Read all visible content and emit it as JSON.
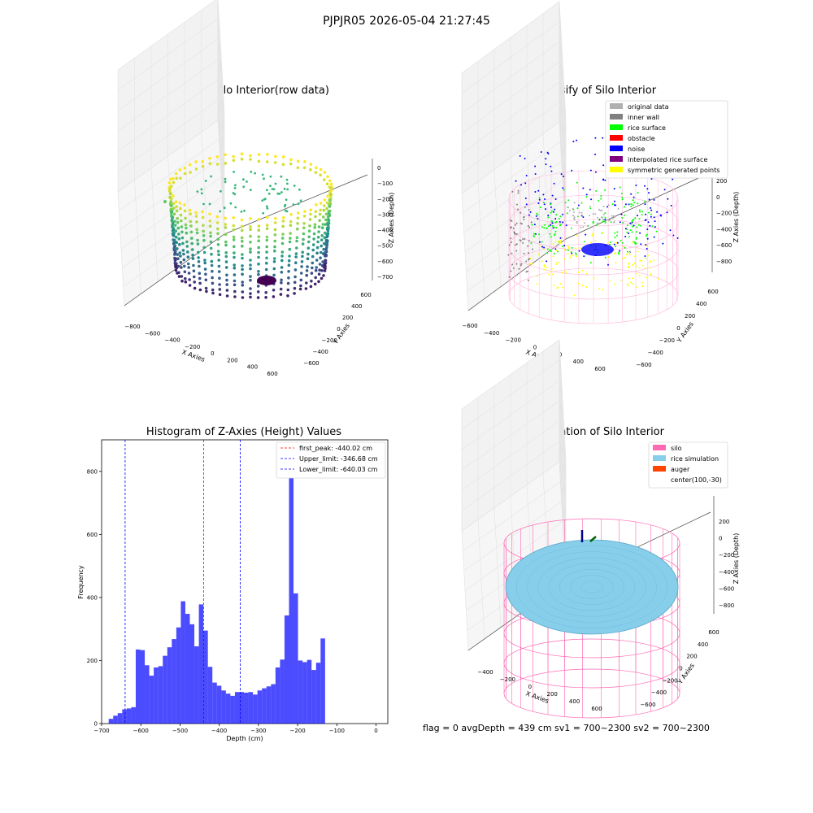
{
  "figure_title": "PJPJR05 2026-05-04 21:27:45",
  "footer_text": "flag = 0     avgDepth = 439 cm  sv1 = 700~2300  sv2 = 700~2300",
  "chart_data": [
    {
      "type": "scatter",
      "title": "3D Plot of Silo Interior(row data)",
      "xlabel": "X Axies",
      "ylabel": "Y Axies",
      "zlabel": "Z Axies (Depth)",
      "x_ticks": [
        "−800",
        "−600",
        "−400",
        "−200",
        "0",
        "200",
        "400",
        "600"
      ],
      "y_ticks": [
        "−600",
        "−400",
        "−200",
        "0",
        "200",
        "400",
        "600"
      ],
      "z_ticks": [
        "0",
        "−100",
        "−200",
        "−300",
        "−400",
        "−500",
        "−600",
        "−700"
      ],
      "colormap": "viridis",
      "colors": {
        "high": "#fde725",
        "mid": "#21918c",
        "low": "#440154"
      }
    },
    {
      "type": "scatter",
      "title": "3D classify of Silo Interior",
      "xlabel": "X Axies",
      "ylabel": "Y Axies",
      "zlabel": "Z Axies (Depth)",
      "x_ticks": [
        "−600",
        "−400",
        "−200",
        "0",
        "200",
        "400",
        "600"
      ],
      "y_ticks": [
        "−600",
        "−400",
        "−200",
        "0",
        "200",
        "400",
        "600"
      ],
      "z_ticks": [
        "200",
        "0",
        "−200",
        "−400",
        "−600",
        "−800"
      ],
      "z_partial_tick": "00",
      "legend_position": "top-right",
      "legend": [
        {
          "label": "original data",
          "color": "#b0b0b0"
        },
        {
          "label": "inner wall",
          "color": "#808080"
        },
        {
          "label": "rice surface",
          "color": "#00ff00"
        },
        {
          "label": "obstacle",
          "color": "#ff0000"
        },
        {
          "label": "noise",
          "color": "#0000ff"
        },
        {
          "label": "interpolated rice surface",
          "color": "#800080"
        },
        {
          "label": "symmetric generated points",
          "color": "#ffff00"
        }
      ]
    },
    {
      "type": "bar",
      "title": "Histogram of Z-Axies (Height) Values",
      "xlabel": "Depth (cm)",
      "ylabel": "Frequency",
      "xlim": [
        -700,
        30
      ],
      "ylim": [
        0,
        900
      ],
      "x_ticks": [
        -700,
        -600,
        -500,
        -400,
        -300,
        -200,
        -100,
        0
      ],
      "x_tick_labels": [
        "−700",
        "−600",
        "−500",
        "−400",
        "−300",
        "−200",
        "−100",
        "0"
      ],
      "y_ticks": [
        0,
        200,
        400,
        600,
        800
      ],
      "bar_color": "#0000ff",
      "bin_start": -682,
      "bin_width": 11.5,
      "values": [
        15,
        25,
        33,
        45,
        48,
        52,
        235,
        233,
        185,
        152,
        178,
        182,
        215,
        242,
        268,
        305,
        388,
        348,
        315,
        245,
        378,
        295,
        180,
        130,
        120,
        105,
        95,
        88,
        100,
        100,
        98,
        100,
        92,
        105,
        112,
        118,
        125,
        178,
        203,
        343,
        860,
        413,
        200,
        195,
        202,
        170,
        193,
        270
      ],
      "lines": [
        {
          "label": "first_peak: -440.02 cm",
          "x": -440.02,
          "color": "#ff0000"
        },
        {
          "label": "Upper_limit: -346.68 cm",
          "x": -346.68,
          "color": "#0000ff"
        },
        {
          "label": "Lower_limit: -640.03 cm",
          "x": -640.03,
          "color": "#0000ff"
        }
      ],
      "legend_position": "top-right"
    },
    {
      "type": "other",
      "title": "3D simulation of Silo Interior",
      "xlabel": "X Axies",
      "ylabel": "Y Axies",
      "zlabel": "Z Axies (Depth)",
      "x_ticks": [
        "−400",
        "−200",
        "0",
        "200",
        "400",
        "600"
      ],
      "y_ticks": [
        "−600",
        "−400",
        "−200",
        "0",
        "200",
        "400",
        "600"
      ],
      "z_ticks": [
        "200",
        "0",
        "−200",
        "−400",
        "−600",
        "−800"
      ],
      "legend_position": "top-right",
      "legend": [
        {
          "label": "silo",
          "color": "#ff69b4"
        },
        {
          "label": "rice simulation",
          "color": "#87ceeb"
        },
        {
          "label": "auger",
          "color": "#ff4500"
        },
        {
          "label": "center(100,-30)",
          "color": ""
        }
      ]
    }
  ]
}
